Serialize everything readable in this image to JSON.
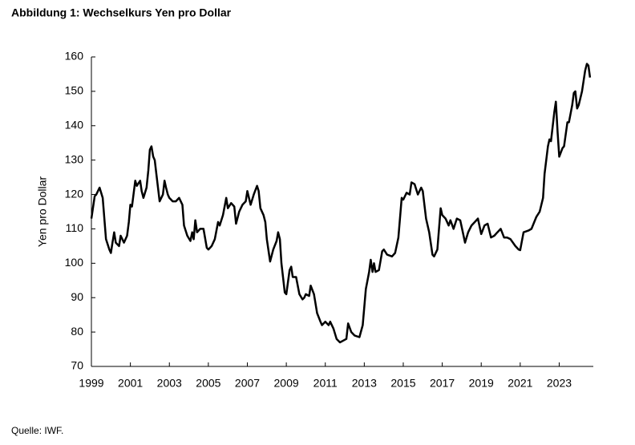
{
  "chart_data": {
    "type": "line",
    "title": "Abbildung 1: Wechselkurs Yen pro Dollar",
    "y_label": "Yen pro Dollar",
    "source": "Quelle: IWF.",
    "x": [
      1999.0,
      1999.08,
      1999.17,
      1999.25,
      1999.42,
      1999.58,
      1999.75,
      1999.92,
      2000.0,
      2000.08,
      2000.17,
      2000.25,
      2000.42,
      2000.5,
      2000.67,
      2000.83,
      2000.92,
      2001.0,
      2001.08,
      2001.25,
      2001.33,
      2001.5,
      2001.58,
      2001.67,
      2001.83,
      2001.92,
      2002.0,
      2002.08,
      2002.17,
      2002.25,
      2002.33,
      2002.5,
      2002.67,
      2002.75,
      2002.83,
      2002.92,
      2003.0,
      2003.17,
      2003.33,
      2003.5,
      2003.67,
      2003.75,
      2003.92,
      2004.08,
      2004.17,
      2004.25,
      2004.33,
      2004.42,
      2004.58,
      2004.75,
      2004.92,
      2005.0,
      2005.17,
      2005.33,
      2005.5,
      2005.58,
      2005.75,
      2005.92,
      2006.0,
      2006.17,
      2006.33,
      2006.42,
      2006.58,
      2006.75,
      2006.92,
      2007.0,
      2007.17,
      2007.33,
      2007.5,
      2007.58,
      2007.67,
      2007.83,
      2007.92,
      2008.0,
      2008.17,
      2008.33,
      2008.5,
      2008.58,
      2008.67,
      2008.75,
      2008.92,
      2009.0,
      2009.17,
      2009.25,
      2009.33,
      2009.5,
      2009.67,
      2009.83,
      2009.92,
      2010.0,
      2010.17,
      2010.25,
      2010.42,
      2010.58,
      2010.75,
      2010.83,
      2011.0,
      2011.17,
      2011.25,
      2011.42,
      2011.58,
      2011.75,
      2011.92,
      2012.08,
      2012.17,
      2012.33,
      2012.5,
      2012.75,
      2012.92,
      2013.08,
      2013.25,
      2013.33,
      2013.42,
      2013.5,
      2013.58,
      2013.75,
      2013.92,
      2014.0,
      2014.17,
      2014.42,
      2014.58,
      2014.75,
      2014.92,
      2015.0,
      2015.17,
      2015.33,
      2015.42,
      2015.58,
      2015.75,
      2015.92,
      2016.0,
      2016.17,
      2016.33,
      2016.5,
      2016.58,
      2016.75,
      2016.92,
      2017.0,
      2017.17,
      2017.33,
      2017.42,
      2017.58,
      2017.75,
      2017.92,
      2018.0,
      2018.17,
      2018.33,
      2018.5,
      2018.67,
      2018.83,
      2019.0,
      2019.17,
      2019.33,
      2019.5,
      2019.67,
      2019.83,
      2020.0,
      2020.17,
      2020.33,
      2020.5,
      2020.75,
      2020.92,
      2021.0,
      2021.17,
      2021.42,
      2021.58,
      2021.83,
      2022.0,
      2022.17,
      2022.25,
      2022.42,
      2022.5,
      2022.58,
      2022.75,
      2022.83,
      2022.92,
      2023.0,
      2023.17,
      2023.25,
      2023.42,
      2023.5,
      2023.67,
      2023.75,
      2023.83,
      2023.92,
      2024.0,
      2024.17,
      2024.33,
      2024.42,
      2024.5,
      2024.58
    ],
    "series": [
      {
        "name": "Yen pro Dollar",
        "color": "#000000",
        "values": [
          113,
          116,
          119.5,
          120,
          122,
          119,
          107,
          104,
          103,
          106,
          109,
          106,
          105,
          108,
          106,
          108,
          112,
          117,
          116.5,
          124,
          122.5,
          124,
          121,
          119,
          122,
          127,
          133,
          134,
          131,
          130,
          126,
          118,
          120,
          124,
          122,
          120,
          119,
          118,
          118,
          119,
          117,
          111,
          108,
          106.5,
          109,
          107,
          112.5,
          109,
          110,
          110,
          104.5,
          104,
          105,
          107,
          112,
          111,
          114,
          119,
          116,
          117.5,
          116.5,
          111.5,
          115,
          117,
          118,
          121,
          117,
          120,
          122.5,
          121,
          116,
          114,
          112,
          107,
          100.5,
          104,
          106.5,
          109,
          107,
          100,
          91.5,
          91,
          98,
          99,
          96,
          96,
          91,
          89.5,
          90,
          91,
          90.5,
          93.5,
          91,
          85.5,
          83,
          82,
          83,
          82,
          83,
          81,
          78,
          77,
          77.5,
          78,
          82.5,
          80,
          79,
          78.5,
          82,
          92.5,
          97.5,
          101,
          97.5,
          100,
          97.5,
          98,
          103.5,
          104,
          102.5,
          102,
          103,
          107.5,
          119,
          118.5,
          120.5,
          120,
          123.5,
          123,
          120,
          122,
          121,
          113,
          109,
          102.5,
          102,
          104,
          116,
          114,
          113,
          111,
          112.5,
          110,
          113,
          112.5,
          110.5,
          106,
          109,
          111,
          112,
          113,
          108.5,
          111,
          111.5,
          107.5,
          108,
          109,
          110,
          107.5,
          107.5,
          107,
          105,
          104,
          103.8,
          109,
          109.5,
          110,
          113.5,
          115,
          119,
          126,
          134,
          136,
          135.5,
          144,
          147,
          138,
          131,
          133.5,
          134,
          141,
          141,
          146,
          149.5,
          150,
          145,
          146,
          150,
          156,
          158,
          157.5,
          154
        ]
      }
    ],
    "xlim": [
      1999,
      2024.75
    ],
    "xticks": [
      1999,
      2001,
      2003,
      2005,
      2007,
      2009,
      2011,
      2013,
      2015,
      2017,
      2019,
      2021,
      2023
    ],
    "ylim": [
      70,
      160
    ],
    "yticks": [
      70,
      80,
      90,
      100,
      110,
      120,
      130,
      140,
      150,
      160
    ],
    "grid": false
  }
}
